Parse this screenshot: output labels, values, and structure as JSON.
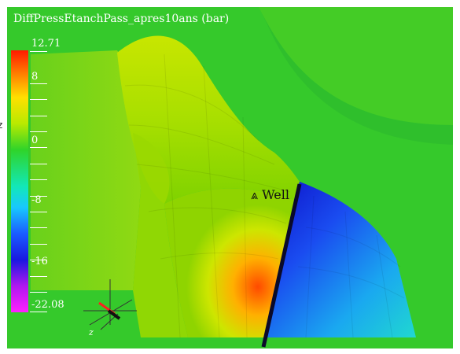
{
  "viewer": {
    "title": "DiffPressEtanchPass_apres10ans (bar)",
    "left_edge_glyph": "z"
  },
  "colorbar": {
    "max_label": "12.71",
    "min_label": "-22.08",
    "tick_labels": [
      "8",
      "0",
      "-8",
      "-16"
    ],
    "colors": [
      "#ff1a00",
      "#ff8a00",
      "#ffe000",
      "#b8ea00",
      "#2fd42a",
      "#12e8b8",
      "#18c8ff",
      "#1a5cff",
      "#1a18e0",
      "#b018f0",
      "#ff20ff"
    ]
  },
  "annotation": {
    "marker_glyph": "⩓",
    "label": "Well"
  },
  "axes_triad": {
    "z_label": "z"
  },
  "colors": {
    "background_green": "#36c92a",
    "hot": "#ff6a00",
    "cold": "#1a22d8"
  }
}
